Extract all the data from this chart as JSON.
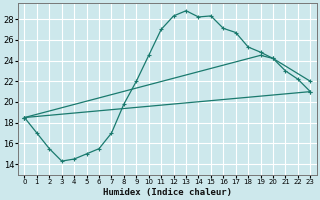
{
  "xlabel": "Humidex (Indice chaleur)",
  "bg_color": "#cde8ec",
  "grid_color": "#ffffff",
  "line_color": "#1a7a6e",
  "xlim": [
    -0.5,
    23.5
  ],
  "ylim": [
    13.0,
    29.5
  ],
  "xticks": [
    0,
    1,
    2,
    3,
    4,
    5,
    6,
    7,
    8,
    9,
    10,
    11,
    12,
    13,
    14,
    15,
    16,
    17,
    18,
    19,
    20,
    21,
    22,
    23
  ],
  "yticks": [
    14,
    16,
    18,
    20,
    22,
    24,
    26,
    28
  ],
  "curve_x": [
    0,
    1,
    2,
    3,
    4,
    5,
    6,
    7,
    8,
    9,
    10,
    11,
    12,
    13,
    14,
    15,
    16,
    17,
    18,
    19,
    20,
    21,
    22,
    23
  ],
  "curve_y": [
    18.5,
    17.0,
    15.5,
    14.3,
    14.5,
    15.0,
    15.5,
    17.0,
    19.8,
    22.0,
    24.5,
    27.0,
    28.3,
    28.8,
    28.2,
    28.3,
    27.1,
    26.7,
    25.3,
    24.8,
    24.2,
    23.0,
    22.2,
    21.0
  ],
  "line1_x": [
    0,
    19,
    20,
    23
  ],
  "line1_y": [
    18.5,
    24.5,
    24.2,
    22.0
  ],
  "line2_x": [
    0,
    23
  ],
  "line2_y": [
    18.5,
    21.0
  ]
}
